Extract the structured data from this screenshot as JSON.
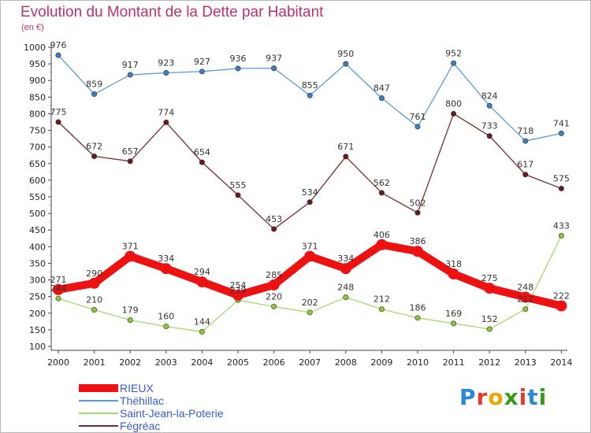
{
  "title": "Evolution du Montant de la Dette par Habitant",
  "subtitle": "(en €)",
  "logo": {
    "text": "Proxiti",
    "letter_colors": [
      "#2a88d8",
      "#e83a2a",
      "#f1a400",
      "#3a9a1a",
      "#e83a2a",
      "#2a88d8",
      "#3a9a1a"
    ]
  },
  "chart_data": {
    "type": "line",
    "x": [
      "2000",
      "2001",
      "2002",
      "2003",
      "2004",
      "2005",
      "2006",
      "2007",
      "2008",
      "2009",
      "2010",
      "2011",
      "2012",
      "2013",
      "2014"
    ],
    "yticks": [
      "100",
      "150",
      "200",
      "250",
      "300",
      "350",
      "400",
      "450",
      "500",
      "550",
      "600",
      "650",
      "700",
      "750",
      "800",
      "850",
      "900",
      "950",
      "1000"
    ],
    "ylim": [
      100,
      1000
    ],
    "grid": false,
    "legend_position": "bottom-left",
    "series": [
      {
        "name": "Théhillac",
        "color": "#5a9bd5",
        "marker": "#3a7fc4",
        "values": [
          976,
          859,
          917,
          923,
          927,
          936,
          937,
          855,
          950,
          847,
          761,
          952,
          824,
          718,
          741
        ]
      },
      {
        "name": "Saint-Jean-la-Poterie",
        "color": "#a8d86a",
        "marker": "#8ac83a",
        "values": [
          244,
          210,
          179,
          160,
          144,
          239,
          220,
          202,
          248,
          212,
          186,
          169,
          152,
          212,
          433
        ]
      },
      {
        "name": "Fégréac",
        "color": "#7a2a2a",
        "marker": "#6a1a1a",
        "values": [
          775,
          672,
          657,
          774,
          654,
          555,
          453,
          534,
          671,
          562,
          502,
          800,
          733,
          617,
          575
        ]
      },
      {
        "name": "RIEUX",
        "color": "#ee1111",
        "marker": "#ee1111",
        "values": [
          271,
          290,
          371,
          334,
          294,
          254,
          285,
          371,
          334,
          406,
          386,
          318,
          275,
          248,
          222
        ]
      }
    ],
    "legend_order": [
      3,
      0,
      1,
      2
    ]
  }
}
